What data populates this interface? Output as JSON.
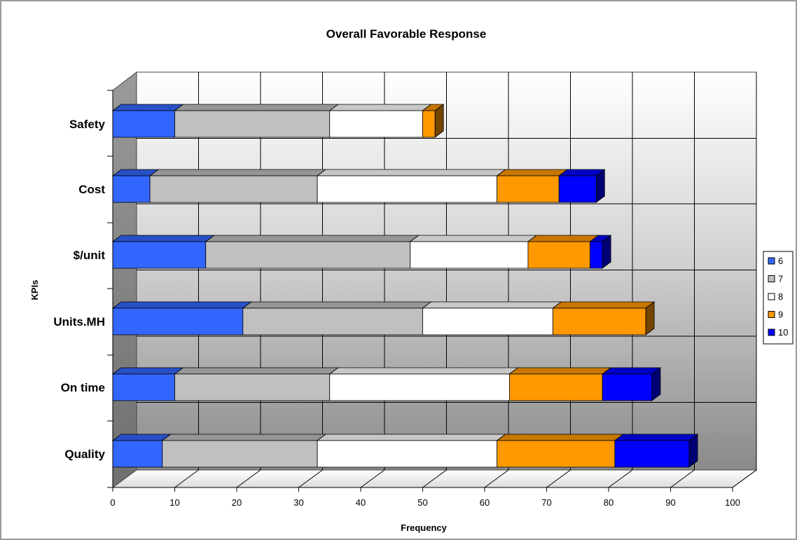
{
  "chart_data": {
    "type": "bar",
    "orientation": "horizontal",
    "stacked": true,
    "three_d": true,
    "title": "Overall Favorable Response",
    "xlabel": "Frequency",
    "ylabel": "KPIs",
    "xlim": [
      0,
      100
    ],
    "xticks": [
      "0",
      "10",
      "20",
      "30",
      "40",
      "50",
      "60",
      "70",
      "80",
      "90",
      "100"
    ],
    "grid": true,
    "legend_position": "right",
    "categories": [
      "Quality",
      "On time",
      "Units.MH",
      "$/unit",
      "Cost",
      "Safety"
    ],
    "series": [
      {
        "name": "6",
        "color": "#3366ff",
        "values": [
          8,
          10,
          21,
          15,
          6,
          10
        ]
      },
      {
        "name": "7",
        "color": "#c0c0c0",
        "values": [
          25,
          25,
          29,
          33,
          27,
          25
        ]
      },
      {
        "name": "8",
        "color": "#ffffff",
        "values": [
          29,
          29,
          21,
          19,
          29,
          15
        ]
      },
      {
        "name": "9",
        "color": "#ff9900",
        "values": [
          19,
          15,
          15,
          10,
          10,
          2
        ]
      },
      {
        "name": "10",
        "color": "#0000ff",
        "values": [
          12,
          8,
          0,
          2,
          6,
          0
        ]
      }
    ]
  }
}
